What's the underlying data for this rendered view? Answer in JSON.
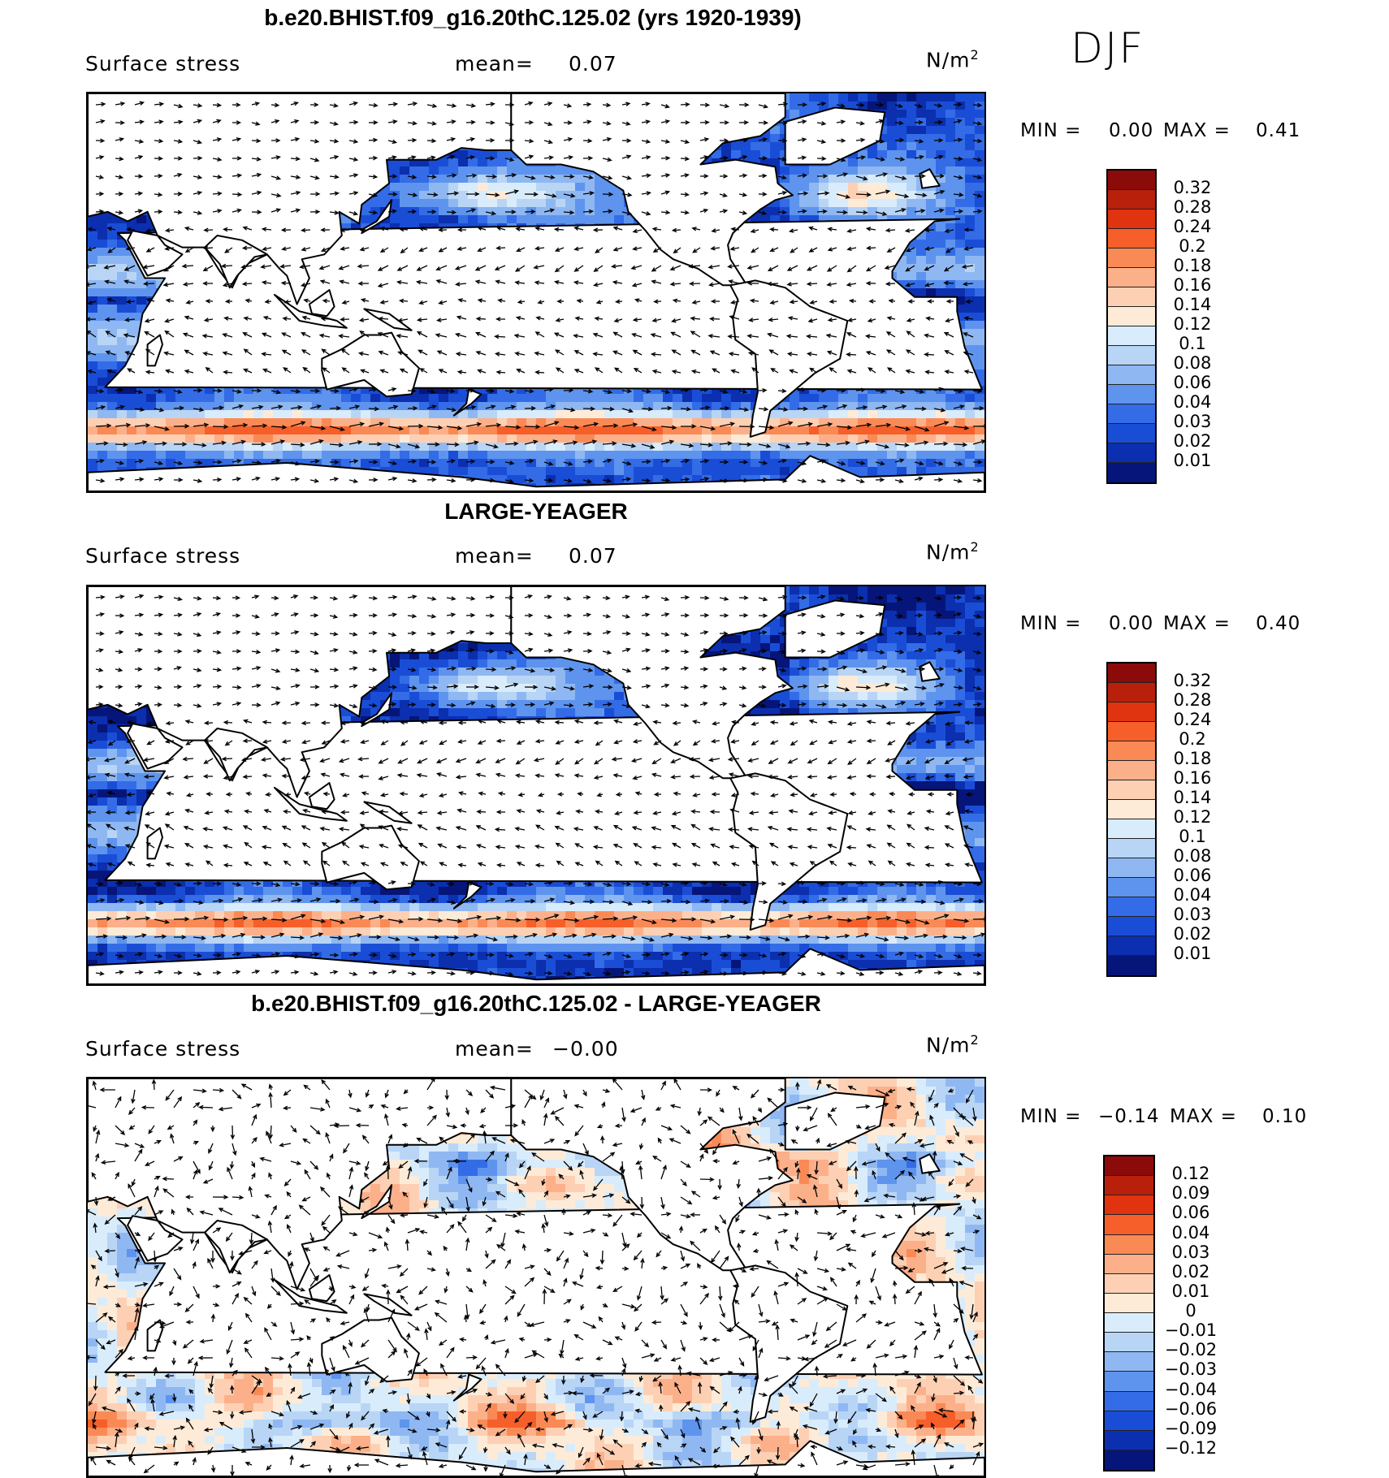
{
  "season": "DJF",
  "panels": [
    {
      "title": "b.e20.BHIST.f09_g16.20thC.125.02 (yrs 1920-1939)",
      "variable": "Surface stress",
      "mean_label": "mean=",
      "mean_value": "0.07",
      "units": "N/m",
      "units_sup": "2",
      "min_label": "MIN =",
      "min_value": "0.00",
      "max_label": "MAX =",
      "max_value": "0.41",
      "colorbar": {
        "levels": [
          "0.32",
          "0.28",
          "0.24",
          "0.2",
          "0.18",
          "0.16",
          "0.14",
          "0.12",
          "0.1",
          "0.08",
          "0.06",
          "0.04",
          "0.03",
          "0.02",
          "0.01"
        ],
        "colors": [
          "#8b0a0a",
          "#b8200c",
          "#e0330f",
          "#f65f2a",
          "#fa8a55",
          "#fcb08a",
          "#fdd0b4",
          "#fdebd8",
          "#d9ecfb",
          "#b8d5f6",
          "#8fb8f2",
          "#5e94ee",
          "#336ce6",
          "#1a4dd6",
          "#0b2fae",
          "#06157a"
        ]
      }
    },
    {
      "title": "LARGE-YEAGER",
      "variable": "Surface stress",
      "mean_label": "mean=",
      "mean_value": "0.07",
      "units": "N/m",
      "units_sup": "2",
      "min_label": "MIN =",
      "min_value": "0.00",
      "max_label": "MAX =",
      "max_value": "0.40",
      "colorbar": {
        "levels": [
          "0.32",
          "0.28",
          "0.24",
          "0.2",
          "0.18",
          "0.16",
          "0.14",
          "0.12",
          "0.1",
          "0.08",
          "0.06",
          "0.04",
          "0.03",
          "0.02",
          "0.01"
        ],
        "colors": [
          "#8b0a0a",
          "#b8200c",
          "#e0330f",
          "#f65f2a",
          "#fa8a55",
          "#fcb08a",
          "#fdd0b4",
          "#fdebd8",
          "#d9ecfb",
          "#b8d5f6",
          "#8fb8f2",
          "#5e94ee",
          "#336ce6",
          "#1a4dd6",
          "#0b2fae",
          "#06157a"
        ]
      }
    },
    {
      "title": "b.e20.BHIST.f09_g16.20thC.125.02 - LARGE-YEAGER",
      "variable": "Surface stress",
      "mean_label": "mean=",
      "mean_value": "−0.00",
      "units": "N/m",
      "units_sup": "2",
      "min_label": "MIN =",
      "min_value": "−0.14",
      "max_label": "MAX =",
      "max_value": "0.10",
      "colorbar": {
        "levels": [
          "0.12",
          "0.09",
          "0.06",
          "0.04",
          "0.03",
          "0.02",
          "0.01",
          "0",
          "−0.01",
          "−0.02",
          "−0.03",
          "−0.04",
          "−0.06",
          "−0.09",
          "−0.12"
        ],
        "colors": [
          "#8b0a0a",
          "#b8200c",
          "#e0330f",
          "#f65f2a",
          "#fa8a55",
          "#fcb08a",
          "#fdd0b4",
          "#fdebd8",
          "#d9ecfb",
          "#b8d5f6",
          "#8fb8f2",
          "#5e94ee",
          "#336ce6",
          "#1a4dd6",
          "#0b2fae",
          "#06157a"
        ]
      }
    }
  ]
}
